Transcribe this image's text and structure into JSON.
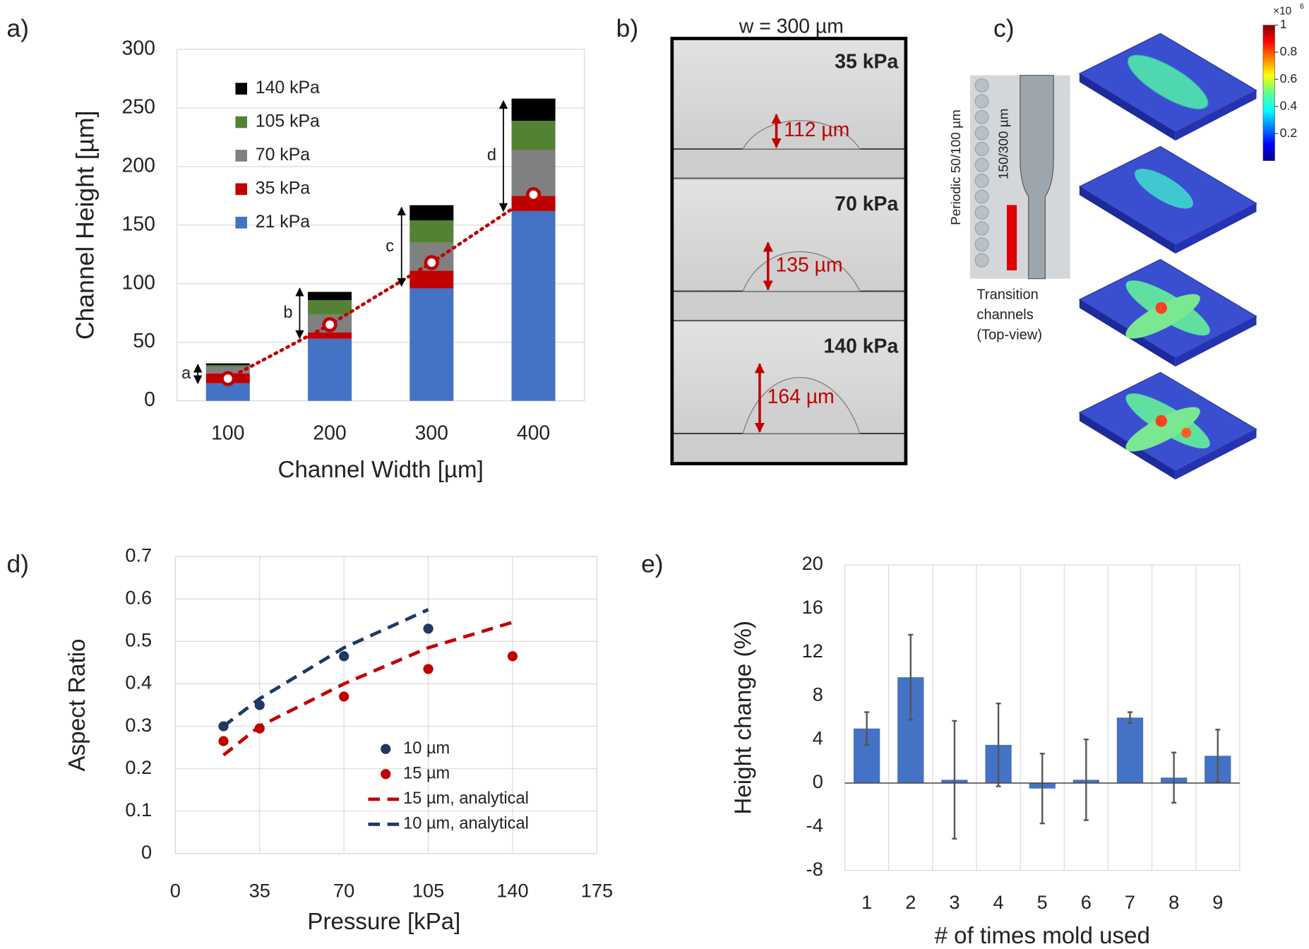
{
  "panel_labels": [
    "a)",
    "b)",
    "c)",
    "d)",
    "e)"
  ],
  "chart_data": [
    {
      "type": "stacked_bar",
      "xlabel": "Channel Width [µm]",
      "ylabel": "Channel Height [µm]",
      "categories": [
        100,
        200,
        300,
        400
      ],
      "ylim": [
        0,
        300
      ],
      "yticks": [
        0,
        50,
        100,
        150,
        200,
        250,
        300
      ],
      "grid": true,
      "legend": "upper left",
      "series": [
        {
          "name": "21 kPa",
          "color": "#4472c4",
          "values": [
            15,
            53,
            96,
            162
          ]
        },
        {
          "name": "35 kPa",
          "color": "#c00000",
          "values": [
            8.5,
            5.5,
            15,
            13
          ]
        },
        {
          "name": "70 kPa",
          "color": "#808080",
          "values": [
            5.5,
            15,
            24,
            39
          ]
        },
        {
          "name": "105 kPa",
          "color": "#548235",
          "values": [
            1.5,
            12.5,
            19,
            25
          ]
        },
        {
          "name": "140 kPa",
          "color": "#000000",
          "values": [
            1.5,
            7,
            13,
            19
          ]
        }
      ],
      "markers": {
        "color": "#c00000",
        "values": [
          19,
          65,
          118,
          176
        ]
      },
      "annotations": [
        {
          "text": "a",
          "range": [
            15,
            31
          ]
        },
        {
          "text": "b",
          "range": [
            53.5,
            96
          ]
        },
        {
          "text": "c",
          "range": [
            98,
            165
          ]
        },
        {
          "text": "d",
          "range": [
            162,
            256
          ]
        }
      ]
    },
    {
      "type": "scatter",
      "xlabel": "Pressure [kPa]",
      "ylabel": "Aspect Ratio",
      "xlim": [
        0,
        175
      ],
      "xticks": [
        0,
        35,
        70,
        105,
        140,
        175
      ],
      "ylim": [
        0,
        0.7
      ],
      "yticks": [
        0,
        0.1,
        0.2,
        0.3,
        0.4,
        0.5,
        0.6,
        0.7
      ],
      "grid": true,
      "legend": "lower right",
      "series": [
        {
          "name": "10 µm",
          "color": "#203864",
          "style": "markers",
          "x": [
            20,
            35,
            70,
            105
          ],
          "values": [
            0.3,
            0.35,
            0.465,
            0.53
          ]
        },
        {
          "name": "15 µm",
          "color": "#c00000",
          "style": "markers",
          "x": [
            20,
            35,
            70,
            105,
            140
          ],
          "values": [
            0.265,
            0.295,
            0.37,
            0.435,
            0.465
          ]
        },
        {
          "name": "15 µm, analytical",
          "color": "#c00000",
          "style": "dashed",
          "x": [
            20,
            35,
            70,
            105,
            140
          ],
          "values": [
            0.232,
            0.3,
            0.4,
            0.485,
            0.545
          ]
        },
        {
          "name": "10 µm, analytical",
          "color": "#203864",
          "style": "dashed",
          "x": [
            20,
            35,
            70,
            105
          ],
          "values": [
            0.3,
            0.365,
            0.485,
            0.575
          ]
        }
      ]
    },
    {
      "type": "bar",
      "xlabel": "# of times mold used",
      "ylabel": "Height change (%)",
      "categories": [
        1,
        2,
        3,
        4,
        5,
        6,
        7,
        8,
        9
      ],
      "values": [
        5,
        9.7,
        0.3,
        3.5,
        -0.5,
        0.3,
        6,
        0.5,
        2.5
      ],
      "errors": [
        1.5,
        3.9,
        5.4,
        3.8,
        3.2,
        3.7,
        0.5,
        2.3,
        2.4
      ],
      "color": "#4472c4",
      "ylim": [
        -8,
        20
      ],
      "yticks": [
        -8,
        -4,
        0,
        4,
        8,
        12,
        16,
        20
      ],
      "grid": "x"
    }
  ],
  "micrographs": {
    "title": "w = 300 µm",
    "frames": [
      {
        "pressure": "35 kPa",
        "height": "112 µm"
      },
      {
        "pressure": "70 kPa",
        "height": "135 µm"
      },
      {
        "pressure": "140 kPa",
        "height": "164 µm"
      }
    ]
  },
  "simulation": {
    "periodic": "Periodic 50/100 µm",
    "transition": "150/300 µm",
    "caption": [
      "Transition",
      "channels",
      "(Top-view)"
    ],
    "colorbar": {
      "multiplier": "×10",
      "exponent": "6",
      "lim": [
        0,
        1
      ],
      "ticks": [
        0.2,
        0.4,
        0.6,
        0.8,
        1
      ]
    }
  }
}
